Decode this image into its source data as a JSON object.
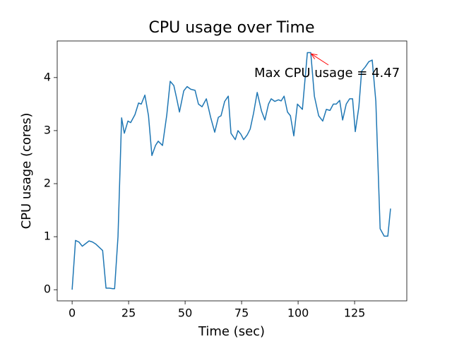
{
  "chart_data": {
    "type": "line",
    "title": "CPU usage over Time",
    "x_label": "Time (sec)",
    "y_label": "CPU usage (cores)",
    "xlim": [
      -6.6,
      148.1
    ],
    "ylim": [
      -0.21,
      4.69
    ],
    "xticks": [
      0,
      25,
      50,
      75,
      100,
      125
    ],
    "yticks": [
      0,
      1,
      2,
      3,
      4
    ],
    "grid": false,
    "series": [
      {
        "name": "CPU usage",
        "color": "#1f77b4",
        "x": [
          0,
          1.5,
          3,
          4.5,
          6,
          7.5,
          9,
          10.5,
          12,
          13.5,
          15,
          16.5,
          18,
          18.8,
          20.3,
          21.9,
          23.1,
          24.7,
          25.9,
          27.8,
          29.4,
          30.6,
          32.2,
          33.8,
          35.3,
          36.9,
          38.1,
          40.0,
          41.9,
          43.4,
          45.0,
          46.3,
          47.5,
          49.4,
          50.9,
          52.5,
          54.4,
          55.9,
          57.5,
          59.4,
          61.3,
          63.1,
          64.7,
          65.9,
          67.5,
          69.1,
          70.3,
          72.2,
          73.4,
          74.7,
          75.9,
          77.5,
          78.8,
          80.3,
          81.9,
          83.8,
          85.3,
          86.9,
          88.1,
          89.7,
          91.3,
          92.5,
          93.8,
          95.3,
          96.6,
          98.1,
          99.7,
          101.9,
          104.1,
          105.6,
          107.2,
          109.1,
          110.9,
          112.5,
          114.1,
          115.6,
          116.9,
          118.4,
          119.7,
          121.3,
          122.8,
          124.1,
          125.3,
          126.9,
          128.1,
          129.7,
          131.3,
          132.8,
          134.4,
          136.3,
          138.1,
          139.7,
          140.9
        ],
        "values": [
          0,
          0.93,
          0.9,
          0.82,
          0.87,
          0.92,
          0.9,
          0.86,
          0.8,
          0.74,
          0.03,
          0.03,
          0.02,
          0.02,
          1.0,
          3.24,
          2.95,
          3.18,
          3.15,
          3.3,
          3.52,
          3.5,
          3.67,
          3.28,
          2.53,
          2.72,
          2.8,
          2.72,
          3.3,
          3.93,
          3.85,
          3.6,
          3.35,
          3.75,
          3.83,
          3.78,
          3.76,
          3.5,
          3.45,
          3.6,
          3.25,
          2.97,
          3.25,
          3.28,
          3.55,
          3.65,
          2.95,
          2.83,
          3.0,
          2.93,
          2.83,
          2.92,
          3.03,
          3.33,
          3.72,
          3.37,
          3.2,
          3.5,
          3.6,
          3.55,
          3.58,
          3.56,
          3.65,
          3.35,
          3.28,
          2.9,
          3.5,
          3.4,
          4.47,
          4.47,
          3.65,
          3.28,
          3.18,
          3.4,
          3.38,
          3.5,
          3.5,
          3.57,
          3.2,
          3.5,
          3.6,
          3.6,
          2.98,
          3.45,
          4.12,
          4.2,
          4.3,
          4.33,
          3.55,
          1.15,
          1.01,
          1.01,
          1.53
        ]
      }
    ],
    "annotation": {
      "text": "Max CPU usage = 4.47",
      "color": "#ff0000",
      "x": 105,
      "y": 4.47
    }
  }
}
